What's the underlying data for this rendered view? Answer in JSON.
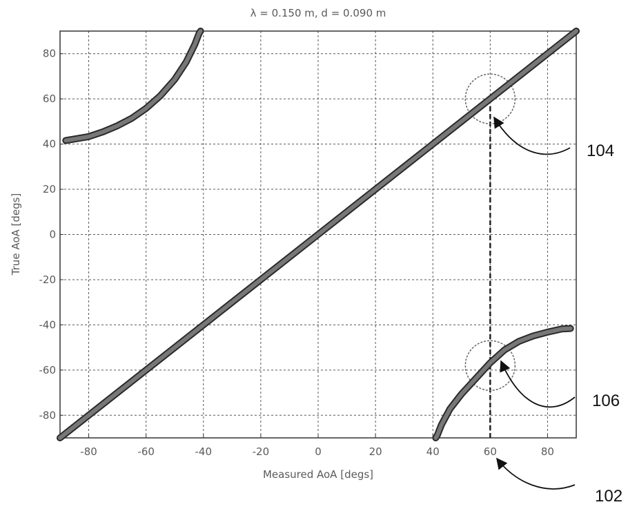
{
  "chart_data": {
    "type": "line",
    "title": "λ = 0.150 m, d = 0.090 m",
    "xlabel": "Measured AoA [degs]",
    "ylabel": "True AoA [degs]",
    "xlim": [
      -90,
      90
    ],
    "ylim": [
      -90,
      90
    ],
    "xticks": [
      -80,
      -60,
      -40,
      -20,
      0,
      20,
      40,
      60,
      80
    ],
    "yticks": [
      -80,
      -60,
      -40,
      -20,
      0,
      20,
      40,
      60,
      80
    ],
    "grid": true,
    "line_color": "#777777",
    "series": [
      {
        "x": [
          -90,
          -60,
          -30,
          0,
          30,
          60,
          90
        ],
        "y": [
          -90,
          -60,
          -30,
          0,
          30,
          60,
          90
        ]
      },
      {
        "x": [
          -88,
          -80,
          -75,
          -70,
          -65,
          -60,
          -55,
          -50,
          -46,
          -43,
          -41.5,
          -41
        ],
        "y": [
          41.6,
          43.3,
          45.4,
          48.1,
          51.4,
          55.8,
          61.4,
          68.6,
          76.3,
          84.1,
          89.0,
          90
        ]
      },
      {
        "x": [
          41,
          41.5,
          43,
          46,
          50,
          55,
          60,
          65,
          70,
          75,
          80,
          85,
          88
        ],
        "y": [
          -90,
          -89.0,
          -84.2,
          -77.1,
          -70.6,
          -63.7,
          -56.8,
          -51.1,
          -47.3,
          -44.9,
          -43.2,
          -41.8,
          -41.6
        ]
      }
    ],
    "markers": [
      {
        "type": "vline",
        "x": 60,
        "y_from": -90,
        "y_to": 58
      },
      {
        "type": "circle",
        "x": 60,
        "y": 60
      },
      {
        "type": "circle",
        "x": 60,
        "y": -58
      }
    ],
    "annotations": [
      {
        "label": "104",
        "target": "upper circle"
      },
      {
        "label": "106",
        "target": "lower circle"
      },
      {
        "label": "102",
        "target": "x = 60 tick"
      }
    ]
  }
}
